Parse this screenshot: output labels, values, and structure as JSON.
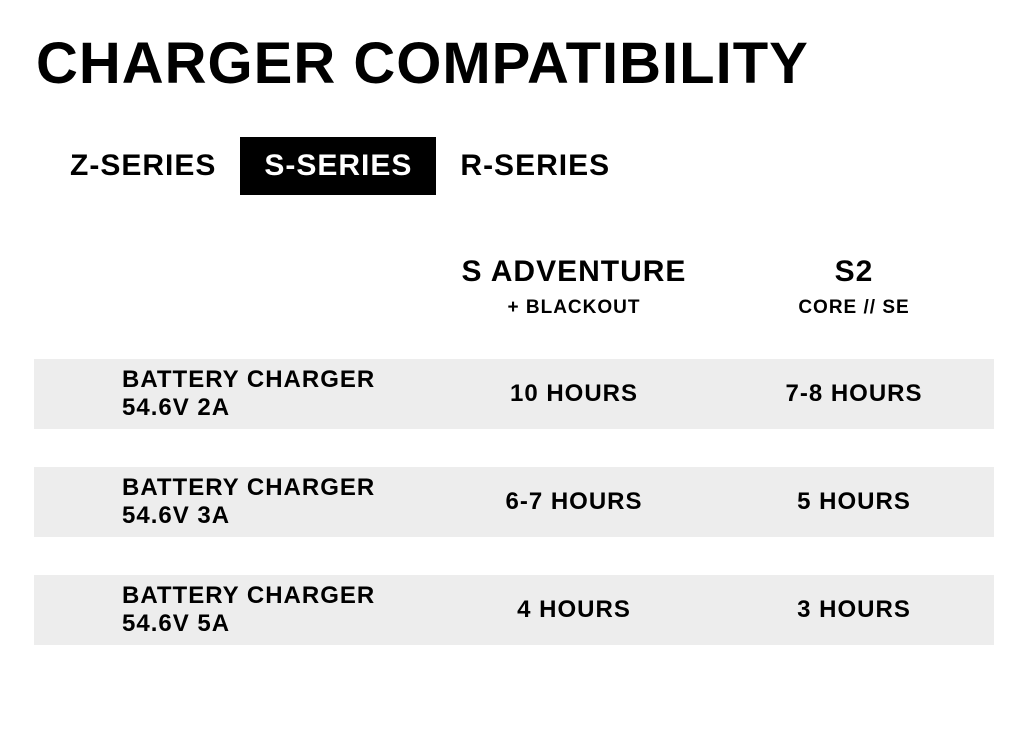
{
  "title": "Charger Compatibility",
  "tabs": [
    {
      "label": "Z-Series",
      "active": false
    },
    {
      "label": "S-Series",
      "active": true
    },
    {
      "label": "R-Series",
      "active": false
    }
  ],
  "table": {
    "type": "table",
    "columns": [
      {
        "title": "S Adventure",
        "subtitle": "+ Blackout"
      },
      {
        "title": "S2",
        "subtitle": "Core // SE"
      }
    ],
    "rows": [
      {
        "label": "Battery Charger 54.6V 2A",
        "values": [
          "10 Hours",
          "7-8 Hours"
        ]
      },
      {
        "label": "Battery Charger 54.6V 3A",
        "values": [
          "6-7 Hours",
          "5 Hours"
        ]
      },
      {
        "label": "Battery Charger 54.6V 5A",
        "values": [
          "4 Hours",
          "3 Hours"
        ]
      }
    ],
    "row_background": "#ededed",
    "background_color": "#ffffff",
    "tab_active_bg": "#000000",
    "tab_active_fg": "#ffffff",
    "text_color": "#000000"
  }
}
